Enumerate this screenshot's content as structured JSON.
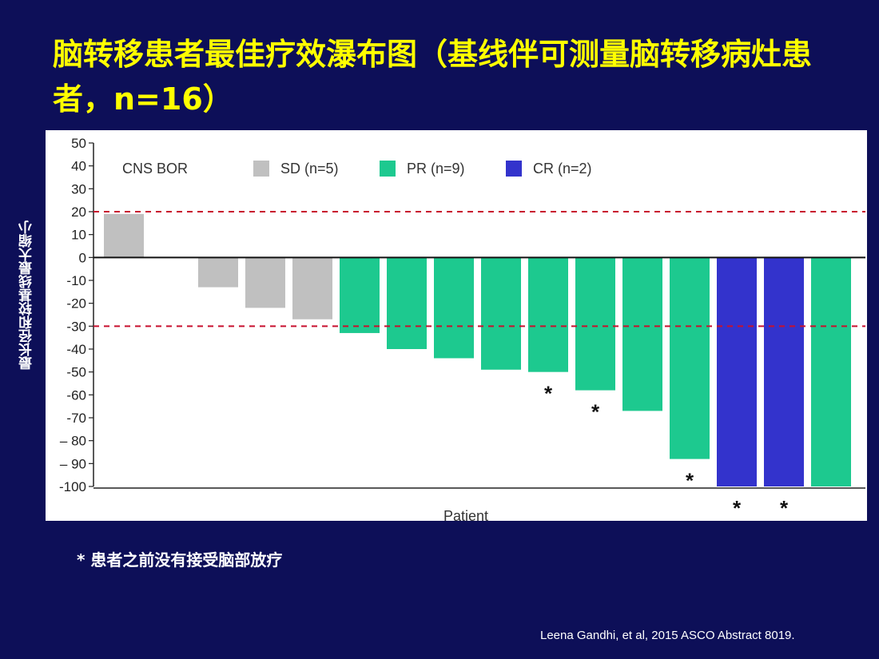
{
  "slide": {
    "title": "脑转移患者最佳疗效瀑布图（基线伴可测量脑转移病灶患者，n=16）",
    "footnote": "* 患者之前没有接受脑部放疗",
    "citation": "Leena Gandhi, et al, 2015 ASCO Abstract  8019."
  },
  "chart_data": {
    "type": "bar",
    "ylabel": "最长径和较基线最大缩小",
    "xlabel": "Patient",
    "ylim": [
      -100,
      50
    ],
    "yticks": [
      50,
      40,
      30,
      20,
      10,
      0,
      -10,
      -20,
      -30,
      -40,
      -50,
      -60,
      -70,
      -80,
      -90,
      -100
    ],
    "ytick_labels": [
      "50",
      "40",
      "30",
      "20",
      "10",
      "0",
      "-10",
      "-20",
      "-30",
      "-40",
      "-50",
      "-60",
      "-70",
      "– 80",
      "– 90",
      "-100"
    ],
    "reference_lines": [
      20,
      -30
    ],
    "legend": {
      "title": "CNS BOR",
      "items": [
        {
          "name": "SD (n=5)",
          "color": "#c0c0c0"
        },
        {
          "name": "PR (n=9)",
          "color": "#1dc98f"
        },
        {
          "name": "CR (n=2)",
          "color": "#3333cc"
        }
      ]
    },
    "patients": [
      {
        "value": 19,
        "response": "SD",
        "asterisk": false
      },
      {
        "value": 0,
        "response": "SD",
        "asterisk": false
      },
      {
        "value": -13,
        "response": "SD",
        "asterisk": false
      },
      {
        "value": -22,
        "response": "SD",
        "asterisk": false
      },
      {
        "value": -27,
        "response": "SD",
        "asterisk": false
      },
      {
        "value": -33,
        "response": "PR",
        "asterisk": false
      },
      {
        "value": -40,
        "response": "PR",
        "asterisk": false
      },
      {
        "value": -44,
        "response": "PR",
        "asterisk": false
      },
      {
        "value": -49,
        "response": "PR",
        "asterisk": false
      },
      {
        "value": -50,
        "response": "PR",
        "asterisk": true
      },
      {
        "value": -58,
        "response": "PR",
        "asterisk": true
      },
      {
        "value": -67,
        "response": "PR",
        "asterisk": false
      },
      {
        "value": -88,
        "response": "PR",
        "asterisk": true
      },
      {
        "value": -100,
        "response": "CR",
        "asterisk": true
      },
      {
        "value": -100,
        "response": "CR",
        "asterisk": true
      },
      {
        "value": -100,
        "response": "PR",
        "asterisk": false
      }
    ],
    "asterisk_symbol": "*"
  }
}
